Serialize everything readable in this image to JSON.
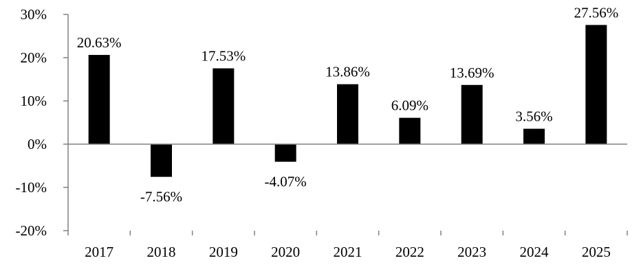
{
  "chart_data": {
    "type": "bar",
    "categories": [
      "2017",
      "2018",
      "2019",
      "2020",
      "2021",
      "2022",
      "2023",
      "2024",
      "2025"
    ],
    "values": [
      20.63,
      -7.56,
      17.53,
      -4.07,
      13.86,
      6.09,
      13.69,
      3.56,
      27.56
    ],
    "data_labels": [
      "20.63%",
      "-7.56%",
      "17.53%",
      "-4.07%",
      "13.86%",
      "6.09%",
      "13.69%",
      "3.56%",
      "27.56%"
    ],
    "title": "",
    "xlabel": "",
    "ylabel": "",
    "ylim": [
      -20,
      30
    ],
    "yticks": [
      30,
      20,
      10,
      0,
      -10,
      -20
    ],
    "ytick_labels": [
      "30%",
      "20%",
      "10%",
      "0%",
      "-10%",
      "-20%"
    ],
    "grid": false,
    "legend": "none",
    "bar_color": "#000000",
    "axis_color": "#808080"
  }
}
